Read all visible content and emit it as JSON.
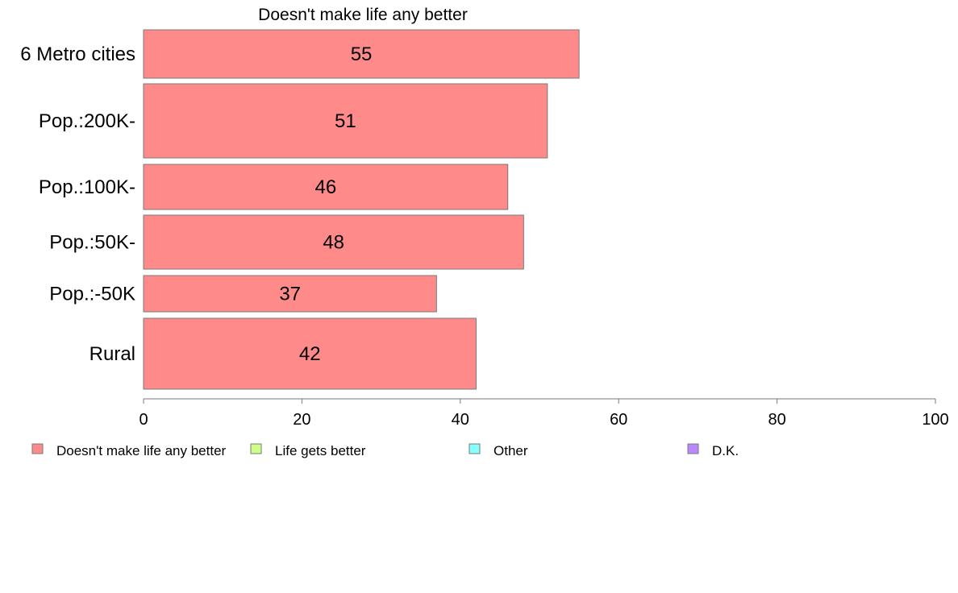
{
  "chart_data": {
    "type": "bar",
    "orientation": "horizontal",
    "title": "Doesn't make life any better",
    "categories": [
      "6 Metro cities",
      "Pop.:200K-",
      "Pop.:100K-",
      "Pop.:50K-",
      "Pop.:-50K",
      "Rural"
    ],
    "series": [
      {
        "name": "Doesn't make life any better",
        "values": [
          55,
          51,
          46,
          48,
          37,
          42
        ],
        "color": "#ff8a8a"
      }
    ],
    "xlim": [
      0,
      100
    ],
    "xticks": [
      0,
      20,
      40,
      60,
      80,
      100
    ],
    "data_labels": true,
    "grid": false,
    "legend": {
      "placement": "bottom",
      "entries": [
        {
          "label": "Doesn't make life any better",
          "color": "#ff8a8a"
        },
        {
          "label": "Life gets better",
          "color": "#ccff88"
        },
        {
          "label": "Other",
          "color": "#88ffff"
        },
        {
          "label": "D.K.",
          "color": "#bb88ff"
        }
      ]
    }
  }
}
